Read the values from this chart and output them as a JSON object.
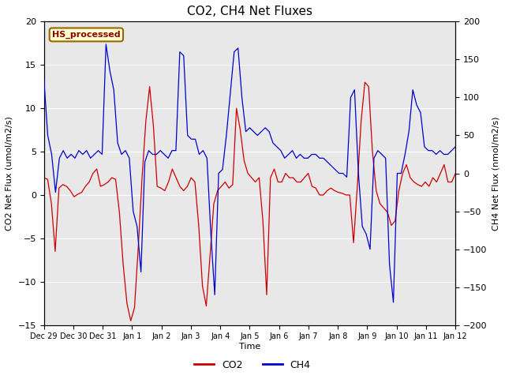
{
  "title": "CO2, CH4 Net Fluxes",
  "ylabel_left": "CO2 Net Flux (umol/m2/s)",
  "ylabel_right": "CH4 Net Flux (nmol/m2/s)",
  "xlabel": "Time",
  "ylim_left": [
    -15,
    20
  ],
  "ylim_right": [
    -200,
    200
  ],
  "yticks_left": [
    -15,
    -10,
    -5,
    0,
    5,
    10,
    15,
    20
  ],
  "yticks_right": [
    -200,
    -150,
    -100,
    -50,
    0,
    50,
    100,
    150,
    200
  ],
  "legend_label": "HS_processed",
  "co2_label": "CO2",
  "ch4_label": "CH4",
  "co2_color": "#cc0000",
  "ch4_color": "#0000cc",
  "bg_color": "#e8e8e8",
  "legend_box_color": "#ffffcc",
  "legend_box_edge": "#996600",
  "title_fontsize": 11,
  "label_fontsize": 8,
  "tick_fontsize": 8,
  "legend_fontsize": 9,
  "xtick_labels": [
    "Dec 29",
    "Dec 30",
    "Dec 31",
    "Jan 1",
    "Jan 2",
    "Jan 3",
    "Jan 4",
    "Jan 5",
    "Jan 6",
    "Jan 7",
    "Jan 8",
    "Jan 9",
    "Jan 10",
    "Jan 11",
    "Jan 12"
  ],
  "co2_data": [
    2.0,
    1.8,
    -1.0,
    -6.5,
    0.8,
    1.2,
    1.0,
    0.5,
    -0.2,
    0.1,
    0.3,
    1.0,
    1.5,
    2.5,
    3.0,
    1.0,
    1.2,
    1.5,
    2.0,
    1.8,
    -2.0,
    -8.0,
    -12.5,
    -14.5,
    -13.0,
    -6.0,
    2.0,
    8.5,
    12.5,
    8.0,
    1.0,
    0.8,
    0.5,
    1.5,
    3.0,
    2.0,
    1.0,
    0.5,
    1.0,
    2.0,
    1.5,
    -3.5,
    -10.5,
    -12.8,
    -7.0,
    -1.0,
    0.5,
    1.0,
    1.5,
    0.8,
    1.2,
    10.0,
    7.5,
    4.0,
    2.5,
    2.0,
    1.5,
    2.0,
    -3.0,
    -11.5,
    2.0,
    3.0,
    1.5,
    1.5,
    2.5,
    2.0,
    2.0,
    1.5,
    1.5,
    2.0,
    2.5,
    1.0,
    0.8,
    0.0,
    0.0,
    0.5,
    0.8,
    0.5,
    0.3,
    0.2,
    0.0,
    0.0,
    -5.5,
    1.0,
    8.5,
    13.0,
    12.5,
    5.0,
    0.5,
    -1.0,
    -1.5,
    -2.0,
    -3.5,
    -3.0,
    0.5,
    2.5,
    3.5,
    2.0,
    1.5,
    1.2,
    1.0,
    1.5,
    1.0,
    2.0,
    1.5,
    2.5,
    3.5,
    1.5,
    1.5,
    2.5
  ],
  "ch4_data": [
    125.0,
    50.0,
    25.0,
    -25.0,
    20.0,
    30.0,
    20.0,
    25.0,
    20.0,
    30.0,
    25.0,
    30.0,
    20.0,
    25.0,
    30.0,
    25.0,
    170.0,
    135.0,
    110.0,
    40.0,
    25.0,
    30.0,
    20.0,
    -50.0,
    -70.0,
    -130.0,
    15.0,
    30.0,
    25.0,
    25.0,
    30.0,
    25.0,
    20.0,
    30.0,
    30.0,
    160.0,
    155.0,
    50.0,
    45.0,
    45.0,
    25.0,
    30.0,
    20.0,
    -80.0,
    -160.0,
    0.0,
    5.0,
    50.0,
    105.0,
    160.0,
    165.0,
    100.0,
    55.0,
    60.0,
    55.0,
    50.0,
    55.0,
    60.0,
    55.0,
    40.0,
    35.0,
    30.0,
    20.0,
    25.0,
    30.0,
    20.0,
    25.0,
    20.0,
    20.0,
    25.0,
    25.0,
    20.0,
    20.0,
    15.0,
    10.0,
    5.0,
    0.0,
    0.0,
    -5.0,
    100.0,
    110.0,
    0.0,
    -70.0,
    -80.0,
    -100.0,
    20.0,
    30.0,
    25.0,
    20.0,
    -120.0,
    -170.0,
    0.0,
    0.0,
    25.0,
    55.0,
    110.0,
    90.0,
    80.0,
    35.0,
    30.0,
    30.0,
    25.0,
    30.0,
    25.0,
    25.0,
    30.0,
    35.0
  ]
}
